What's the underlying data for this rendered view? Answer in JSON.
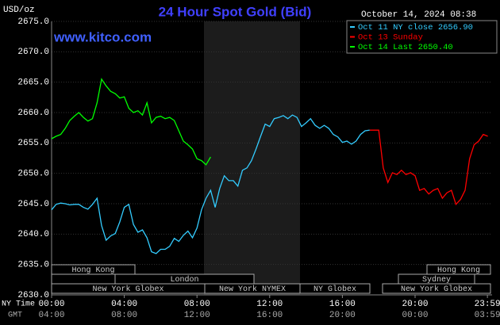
{
  "chart_data": {
    "type": "line",
    "title": "24 Hour Spot Gold (Bid)",
    "annotation": "www.kitco.com",
    "timestamp": "October 14, 2024 08:38",
    "y_label": "USD/oz",
    "x_label": "NY Time",
    "x2_label": "GMT",
    "xlim": [
      0,
      24
    ],
    "ylim": [
      2630,
      2675
    ],
    "grid": true,
    "legend": "top-right",
    "yticks": [
      {
        "value": 2675,
        "label": "2675.0"
      },
      {
        "value": 2670,
        "label": "2670.0"
      },
      {
        "value": 2665,
        "label": "2665.0"
      },
      {
        "value": 2660,
        "label": "2660.0"
      },
      {
        "value": 2655,
        "label": "2655.0"
      },
      {
        "value": 2650,
        "label": "2650.0"
      },
      {
        "value": 2645,
        "label": "2645.0"
      },
      {
        "value": 2640,
        "label": "2640.0"
      },
      {
        "value": 2635,
        "label": "2635.0"
      },
      {
        "value": 2630,
        "label": "2630.0"
      }
    ],
    "xticks": [
      {
        "value": 0,
        "label": "00:00"
      },
      {
        "value": 4,
        "label": "04:00"
      },
      {
        "value": 8,
        "label": "08:00"
      },
      {
        "value": 12,
        "label": "12:00"
      },
      {
        "value": 16,
        "label": "16:00"
      },
      {
        "value": 20,
        "label": "20:00"
      },
      {
        "value": 23.98,
        "label": "23:59"
      }
    ],
    "x2ticks": [
      {
        "value": 0,
        "label": "04:00"
      },
      {
        "value": 4,
        "label": "08:00"
      },
      {
        "value": 8,
        "label": "12:00"
      },
      {
        "value": 12,
        "label": "16:00"
      },
      {
        "value": 16,
        "label": "20:00"
      },
      {
        "value": 20,
        "label": "00:00"
      },
      {
        "value": 23.98,
        "label": "03:59"
      }
    ],
    "sessions": [
      "Hong Kong",
      "London",
      "New York Globex",
      "New York NYMEX",
      "NY Globex",
      "Hong Kong",
      "Sydney",
      "New York Globex"
    ],
    "series": [
      {
        "name": "Oct 11 NY close 2656.90",
        "color": "#33ccff",
        "x": [
          0,
          0.25,
          0.5,
          0.75,
          1,
          1.25,
          1.5,
          1.75,
          2,
          2.25,
          2.5,
          2.75,
          3,
          3.25,
          3.5,
          3.75,
          4,
          4.25,
          4.5,
          4.75,
          5,
          5.25,
          5.5,
          5.75,
          6,
          6.25,
          6.5,
          6.75,
          7,
          7.25,
          7.5,
          7.75,
          8,
          8.25,
          8.5,
          8.75,
          9,
          9.25,
          9.5,
          9.75,
          10,
          10.25,
          10.5,
          10.75,
          11,
          11.25,
          11.5,
          11.75,
          12,
          12.25,
          12.5,
          12.75,
          13,
          13.25,
          13.5,
          13.75,
          14,
          14.25,
          14.5,
          14.75,
          15,
          15.25,
          15.5,
          15.75,
          16,
          16.25,
          16.5,
          16.75,
          17,
          17.25,
          17.5
        ],
        "values": [
          2644.0,
          2644.9,
          2645.1,
          2645.0,
          2644.8,
          2644.9,
          2644.9,
          2644.4,
          2644.1,
          2644.9,
          2645.9,
          2641.4,
          2639.0,
          2639.7,
          2640.1,
          2642.0,
          2644.4,
          2644.9,
          2641.6,
          2640.3,
          2640.7,
          2639.4,
          2637.1,
          2636.8,
          2637.5,
          2637.5,
          2638.0,
          2639.3,
          2638.8,
          2639.8,
          2640.5,
          2639.4,
          2641.0,
          2644.0,
          2645.9,
          2647.2,
          2644.4,
          2647.5,
          2649.6,
          2648.8,
          2648.8,
          2647.9,
          2650.5,
          2650.9,
          2652.1,
          2654.0,
          2656.1,
          2658.1,
          2657.7,
          2659.0,
          2659.2,
          2659.5,
          2659.0,
          2659.6,
          2659.2,
          2657.7,
          2658.3,
          2659.0,
          2657.9,
          2657.4,
          2657.9,
          2657.4,
          2656.4,
          2656.0,
          2655.1,
          2655.3,
          2654.8,
          2655.3,
          2656.4,
          2657.0,
          2657.1
        ]
      },
      {
        "name": "Oct 13 Sunday",
        "color": "#ff0000",
        "x": [
          17.5,
          17.75,
          18,
          18.25,
          18.5,
          18.75,
          19,
          19.25,
          19.5,
          19.75,
          20,
          20.25,
          20.5,
          20.75,
          21,
          21.25,
          21.5,
          21.75,
          22,
          22.25,
          22.5,
          22.75,
          23,
          23.25,
          23.5,
          23.75,
          24
        ],
        "values": [
          2657.1,
          2657.1,
          2657.1,
          2650.9,
          2648.5,
          2650.1,
          2649.8,
          2650.5,
          2649.8,
          2650.1,
          2649.6,
          2647.2,
          2647.5,
          2646.6,
          2647.2,
          2647.5,
          2645.9,
          2646.8,
          2647.2,
          2644.9,
          2645.7,
          2647.2,
          2652.4,
          2654.7,
          2655.3,
          2656.4,
          2656.1
        ]
      },
      {
        "name": "Oct 14 Last 2650.40",
        "color": "#00ff00",
        "x": [
          0,
          0.25,
          0.5,
          0.75,
          1,
          1.25,
          1.5,
          1.75,
          2,
          2.25,
          2.5,
          2.75,
          3,
          3.25,
          3.5,
          3.75,
          4,
          4.25,
          4.5,
          4.75,
          5,
          5.25,
          5.5,
          5.75,
          6,
          6.25,
          6.5,
          6.75,
          7,
          7.25,
          7.5,
          7.75,
          8,
          8.25,
          8.5,
          8.75
        ],
        "values": [
          2655.7,
          2656.1,
          2656.4,
          2657.4,
          2658.7,
          2659.4,
          2660.0,
          2659.2,
          2658.6,
          2659.0,
          2661.6,
          2665.5,
          2664.4,
          2663.5,
          2663.1,
          2662.4,
          2662.6,
          2660.7,
          2660.0,
          2660.3,
          2659.6,
          2661.6,
          2658.3,
          2659.2,
          2659.4,
          2659.0,
          2659.2,
          2658.7,
          2657.0,
          2655.3,
          2654.7,
          2654.0,
          2652.4,
          2652.1,
          2651.4,
          2652.7
        ]
      }
    ]
  }
}
